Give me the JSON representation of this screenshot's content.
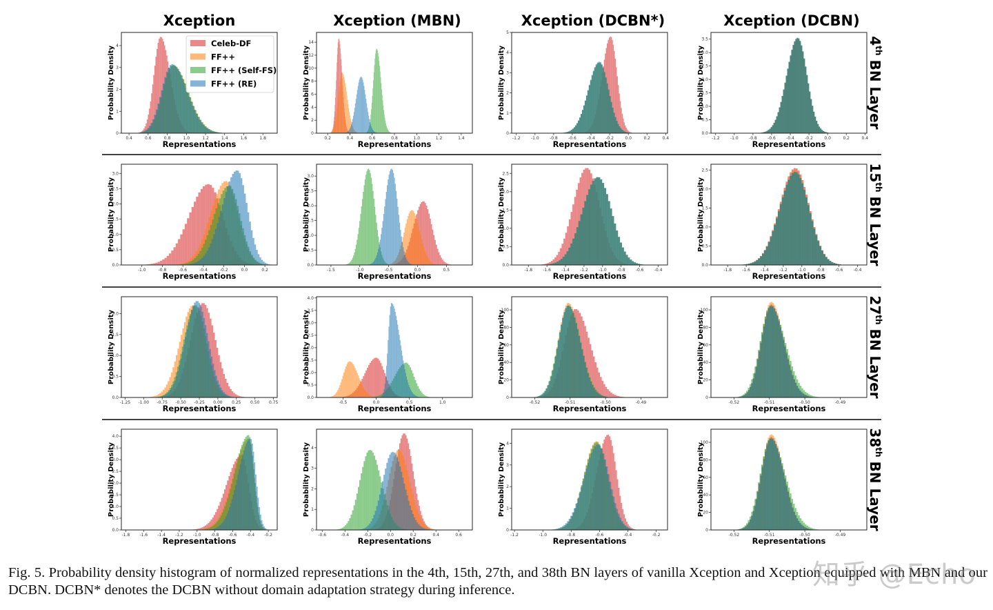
{
  "figure": {
    "column_titles": [
      "Xception",
      "Xception (MBN)",
      "Xception (DCBN*)",
      "Xception (DCBN)"
    ],
    "row_labels": [
      {
        "num": "4",
        "sup": "th",
        "rest": "BN Layer"
      },
      {
        "num": "15",
        "sup": "th",
        "rest": "BN Layer"
      },
      {
        "num": "27",
        "sup": "th",
        "rest": "BN Layer"
      },
      {
        "num": "38",
        "sup": "th",
        "rest": "BN Layer"
      }
    ],
    "xlabel": "Representations",
    "ylabel": "Probability Density",
    "legend": [
      "Celeb-DF",
      "FF++",
      "FF++ (Self-FS)",
      "FF++ (RE)"
    ],
    "colors": {
      "Celeb-DF": "#d62728",
      "FF++": "#ff7f0e",
      "FF++ (Self-FS)": "#2ca02c",
      "FF++ (RE)": "#1f77b4"
    },
    "caption": "Fig. 5.   Probability density histogram of normalized representations in the 4th, 15th, 27th, and 38th BN layers of vanilla Xception and Xception equipped with MBN and our DCBN. DCBN* denotes the DCBN without domain adaptation strategy during inference.",
    "watermark": "知乎 @Echo"
  },
  "chart_data": [
    {
      "type": "bar",
      "row": "4th BN Layer",
      "title": "Xception",
      "xlim": [
        0.32,
        1.95
      ],
      "ylim": [
        0,
        4.6
      ],
      "xticks": [
        "0.4",
        "0.6",
        "0.8",
        "1.0",
        "1.2",
        "1.4",
        "1.6",
        "1.8"
      ],
      "yticks": [
        "0",
        "1",
        "2",
        "3",
        "4"
      ],
      "legend": "top-right",
      "series": [
        {
          "name": "Celeb-DF",
          "peak_x": 0.73,
          "peak_density": 4.4,
          "spread_left": 0.07,
          "spread_right": 0.1
        },
        {
          "name": "FF++",
          "peak_x": 0.86,
          "peak_density": 3.1,
          "spread_left": 0.11,
          "spread_right": 0.16
        },
        {
          "name": "FF++ (Self-FS)",
          "peak_x": 0.86,
          "peak_density": 3.1,
          "spread_left": 0.11,
          "spread_right": 0.16
        },
        {
          "name": "FF++ (RE)",
          "peak_x": 0.85,
          "peak_density": 3.15,
          "spread_left": 0.11,
          "spread_right": 0.16
        }
      ]
    },
    {
      "type": "bar",
      "row": "4th BN Layer",
      "title": "Xception (MBN)",
      "xlim": [
        0.1,
        1.5
      ],
      "ylim": [
        0,
        15.5
      ],
      "xticks": [
        "0.2",
        "0.4",
        "0.6",
        "0.8",
        "1.0",
        "1.2",
        "1.4"
      ],
      "yticks": [
        "0",
        "2",
        "4",
        "6",
        "8",
        "10",
        "12",
        "14"
      ],
      "series": [
        {
          "name": "Celeb-DF",
          "peak_x": 0.3,
          "peak_density": 14.6,
          "spread_left": 0.022,
          "spread_right": 0.03
        },
        {
          "name": "FF++",
          "peak_x": 0.33,
          "peak_density": 9.3,
          "spread_left": 0.035,
          "spread_right": 0.045
        },
        {
          "name": "FF++ (Self-FS)",
          "peak_x": 0.64,
          "peak_density": 13,
          "spread_left": 0.03,
          "spread_right": 0.04
        },
        {
          "name": "FF++ (RE)",
          "peak_x": 0.5,
          "peak_density": 8.7,
          "spread_left": 0.045,
          "spread_right": 0.045
        }
      ]
    },
    {
      "type": "bar",
      "row": "4th BN Layer",
      "title": "Xception (DCBN*)",
      "xlim": [
        -1.25,
        0.42
      ],
      "ylim": [
        0,
        5
      ],
      "xticks": [
        "-1.2",
        "-1.0",
        "-0.8",
        "-0.6",
        "-0.4",
        "-0.2",
        "0.0",
        "0.2",
        "0.4"
      ],
      "yticks": [
        "0",
        "1",
        "2",
        "3",
        "4",
        "5"
      ],
      "series": [
        {
          "name": "Celeb-DF",
          "peak_x": -0.19,
          "peak_density": 4.8,
          "spread_left": 0.09,
          "spread_right": 0.07
        },
        {
          "name": "FF++",
          "peak_x": -0.31,
          "peak_density": 3.5,
          "spread_left": 0.12,
          "spread_right": 0.1
        },
        {
          "name": "FF++ (Self-FS)",
          "peak_x": -0.31,
          "peak_density": 3.5,
          "spread_left": 0.12,
          "spread_right": 0.1
        },
        {
          "name": "FF++ (RE)",
          "peak_x": -0.31,
          "peak_density": 3.55,
          "spread_left": 0.12,
          "spread_right": 0.1
        }
      ]
    },
    {
      "type": "bar",
      "row": "4th BN Layer",
      "title": "Xception (DCBN)",
      "xlim": [
        -1.25,
        0.42
      ],
      "ylim": [
        0,
        3.75
      ],
      "xticks": [
        "-1.2",
        "-1.0",
        "-0.8",
        "-0.6",
        "-0.4",
        "-0.2",
        "0.0",
        "0.2",
        "0.4"
      ],
      "yticks": [
        "0.0",
        "0.5",
        "1.0",
        "1.5",
        "2.0",
        "2.5",
        "3.0",
        "3.5"
      ],
      "series": [
        {
          "name": "Celeb-DF",
          "peak_x": -0.32,
          "peak_density": 3.5,
          "spread_left": 0.12,
          "spread_right": 0.1
        },
        {
          "name": "FF++",
          "peak_x": -0.32,
          "peak_density": 3.55,
          "spread_left": 0.12,
          "spread_right": 0.1
        },
        {
          "name": "FF++ (Self-FS)",
          "peak_x": -0.32,
          "peak_density": 3.55,
          "spread_left": 0.12,
          "spread_right": 0.1
        },
        {
          "name": "FF++ (RE)",
          "peak_x": -0.32,
          "peak_density": 3.55,
          "spread_left": 0.12,
          "spread_right": 0.1
        }
      ]
    },
    {
      "type": "bar",
      "row": "15th BN Layer",
      "title": "Xception",
      "xlim": [
        -1.2,
        0.32
      ],
      "ylim": [
        0,
        3.3
      ],
      "xticks": [
        "-1.0",
        "-0.8",
        "-0.6",
        "-0.4",
        "-0.2",
        "0.0",
        "0.2"
      ],
      "yticks": [
        "0.0",
        "0.5",
        "1.0",
        "1.5",
        "2.0",
        "2.5",
        "3.0"
      ],
      "series": [
        {
          "name": "Celeb-DF",
          "peak_x": -0.35,
          "peak_density": 2.65,
          "spread_left": 0.19,
          "spread_right": 0.14
        },
        {
          "name": "FF++",
          "peak_x": -0.18,
          "peak_density": 2.75,
          "spread_left": 0.15,
          "spread_right": 0.12
        },
        {
          "name": "FF++ (Self-FS)",
          "peak_x": -0.15,
          "peak_density": 2.6,
          "spread_left": 0.15,
          "spread_right": 0.11
        },
        {
          "name": "FF++ (RE)",
          "peak_x": -0.07,
          "peak_density": 3.1,
          "spread_left": 0.15,
          "spread_right": 0.1
        }
      ]
    },
    {
      "type": "bar",
      "row": "15th BN Layer",
      "title": "Xception (MBN)",
      "xlim": [
        -1.75,
        0.95
      ],
      "ylim": [
        0,
        3.4
      ],
      "xticks": [
        "-1.5",
        "-1.0",
        "-0.5",
        "0.0",
        "0.5"
      ],
      "yticks": [
        "0.0",
        "0.5",
        "1.0",
        "1.5",
        "2.0",
        "2.5",
        "3.0"
      ],
      "series": [
        {
          "name": "Celeb-DF",
          "peak_x": 0.1,
          "peak_density": 2.15,
          "spread_left": 0.17,
          "spread_right": 0.15
        },
        {
          "name": "FF++",
          "peak_x": -0.1,
          "peak_density": 1.85,
          "spread_left": 0.13,
          "spread_right": 0.14
        },
        {
          "name": "FF++ (Self-FS)",
          "peak_x": -0.85,
          "peak_density": 3.25,
          "spread_left": 0.12,
          "spread_right": 0.11
        },
        {
          "name": "FF++ (RE)",
          "peak_x": -0.45,
          "peak_density": 3.25,
          "spread_left": 0.12,
          "spread_right": 0.11
        }
      ]
    },
    {
      "type": "bar",
      "row": "15th BN Layer",
      "title": "Xception (DCBN*)",
      "xlim": [
        -1.98,
        -0.3
      ],
      "ylim": [
        0,
        2.75
      ],
      "xticks": [
        "-1.8",
        "-1.6",
        "-1.4",
        "-1.2",
        "-1.0",
        "-0.8",
        "-0.6",
        "-0.4"
      ],
      "yticks": [
        "0.0",
        "0.5",
        "1.0",
        "1.5",
        "2.0",
        "2.5"
      ],
      "series": [
        {
          "name": "Celeb-DF",
          "peak_x": -1.17,
          "peak_density": 2.65,
          "spread_left": 0.15,
          "spread_right": 0.14
        },
        {
          "name": "FF++",
          "peak_x": -1.05,
          "peak_density": 2.4,
          "spread_left": 0.17,
          "spread_right": 0.15
        },
        {
          "name": "FF++ (Self-FS)",
          "peak_x": -1.05,
          "peak_density": 2.4,
          "spread_left": 0.17,
          "spread_right": 0.15
        },
        {
          "name": "FF++ (RE)",
          "peak_x": -1.05,
          "peak_density": 2.4,
          "spread_left": 0.17,
          "spread_right": 0.15
        }
      ]
    },
    {
      "type": "bar",
      "row": "15th BN Layer",
      "title": "Xception (DCBN)",
      "xlim": [
        -1.98,
        -0.3
      ],
      "ylim": [
        0,
        2.65
      ],
      "xticks": [
        "-1.8",
        "-1.6",
        "-1.4",
        "-1.2",
        "-1.0",
        "-0.8",
        "-0.6",
        "-0.4"
      ],
      "yticks": [
        "0.0",
        "0.5",
        "1.0",
        "1.5",
        "2.0",
        "2.5"
      ],
      "series": [
        {
          "name": "Celeb-DF",
          "peak_x": -1.07,
          "peak_density": 2.55,
          "spread_left": 0.17,
          "spread_right": 0.15
        },
        {
          "name": "FF++",
          "peak_x": -1.07,
          "peak_density": 2.5,
          "spread_left": 0.17,
          "spread_right": 0.15
        },
        {
          "name": "FF++ (Self-FS)",
          "peak_x": -1.07,
          "peak_density": 2.45,
          "spread_left": 0.17,
          "spread_right": 0.15
        },
        {
          "name": "FF++ (RE)",
          "peak_x": -1.07,
          "peak_density": 2.45,
          "spread_left": 0.17,
          "spread_right": 0.15
        }
      ]
    },
    {
      "type": "bar",
      "row": "27th BN Layer",
      "title": "Xception",
      "xlim": [
        -1.3,
        0.8
      ],
      "ylim": [
        0,
        2.4
      ],
      "xticks": [
        "-1.25",
        "-1.00",
        "-0.75",
        "-0.50",
        "-0.25",
        "0.00",
        "0.25",
        "0.50",
        "0.75"
      ],
      "yticks": [
        "0.0",
        "0.5",
        "1.0",
        "1.5",
        "2.0"
      ],
      "series": [
        {
          "name": "Celeb-DF",
          "peak_x": -0.2,
          "peak_density": 2.25,
          "spread_left": 0.17,
          "spread_right": 0.17
        },
        {
          "name": "FF++",
          "peak_x": -0.33,
          "peak_density": 2.2,
          "spread_left": 0.18,
          "spread_right": 0.15
        },
        {
          "name": "FF++ (Self-FS)",
          "peak_x": -0.3,
          "peak_density": 2.2,
          "spread_left": 0.16,
          "spread_right": 0.15
        },
        {
          "name": "FF++ (RE)",
          "peak_x": -0.28,
          "peak_density": 2.3,
          "spread_left": 0.16,
          "spread_right": 0.15
        }
      ]
    },
    {
      "type": "bar",
      "row": "27th BN Layer",
      "title": "Xception (MBN)",
      "xlim": [
        -0.9,
        1.45
      ],
      "ylim": [
        0,
        4.05
      ],
      "xticks": [
        "-0.5",
        "0.0",
        "0.5",
        "1.0"
      ],
      "yticks": [
        "0.0",
        "0.5",
        "1.0",
        "1.5",
        "2.0",
        "2.5",
        "3.0",
        "3.5",
        "4.0"
      ],
      "series": [
        {
          "name": "Celeb-DF",
          "peak_x": 0.0,
          "peak_density": 1.6,
          "spread_left": 0.17,
          "spread_right": 0.13
        },
        {
          "name": "FF++",
          "peak_x": -0.4,
          "peak_density": 1.45,
          "spread_left": 0.1,
          "spread_right": 0.13
        },
        {
          "name": "FF++ (Self-FS)",
          "peak_x": 0.45,
          "peak_density": 1.4,
          "spread_left": 0.17,
          "spread_right": 0.12
        },
        {
          "name": "FF++ (RE)",
          "peak_x": 0.23,
          "peak_density": 3.8,
          "spread_left": 0.05,
          "spread_right": 0.13
        }
      ]
    },
    {
      "type": "bar",
      "row": "27th BN Layer",
      "title": "Xception (DCBN*)",
      "xlim": [
        -0.5265,
        -0.4825
      ],
      "ylim": [
        0,
        115
      ],
      "xticks": [
        "-0.52",
        "-0.51",
        "-0.50",
        "-0.49"
      ],
      "yticks": [
        "0",
        "20",
        "40",
        "60",
        "80",
        "100"
      ],
      "series": [
        {
          "name": "Celeb-DF",
          "peak_x": -0.5085,
          "peak_density": 101,
          "spread_left": 0.0032,
          "spread_right": 0.0042
        },
        {
          "name": "FF++",
          "peak_x": -0.5105,
          "peak_density": 108,
          "spread_left": 0.0028,
          "spread_right": 0.0034
        },
        {
          "name": "FF++ (Self-FS)",
          "peak_x": -0.5105,
          "peak_density": 105,
          "spread_left": 0.0029,
          "spread_right": 0.0035
        },
        {
          "name": "FF++ (RE)",
          "peak_x": -0.5105,
          "peak_density": 105,
          "spread_left": 0.0028,
          "spread_right": 0.0034
        }
      ]
    },
    {
      "type": "bar",
      "row": "27th BN Layer",
      "title": "Xception (DCBN)",
      "xlim": [
        -0.5265,
        -0.4825
      ],
      "ylim": [
        0,
        115
      ],
      "xticks": [
        "-0.52",
        "-0.51",
        "-0.50",
        "-0.49"
      ],
      "yticks": [
        "0",
        "20",
        "40",
        "60",
        "80",
        "100"
      ],
      "series": [
        {
          "name": "Celeb-DF",
          "peak_x": -0.5095,
          "peak_density": 106,
          "spread_left": 0.0028,
          "spread_right": 0.0036
        },
        {
          "name": "FF++",
          "peak_x": -0.5095,
          "peak_density": 109,
          "spread_left": 0.0028,
          "spread_right": 0.0036
        },
        {
          "name": "FF++ (Self-FS)",
          "peak_x": -0.5097,
          "peak_density": 104,
          "spread_left": 0.0029,
          "spread_right": 0.0042
        },
        {
          "name": "FF++ (RE)",
          "peak_x": -0.5095,
          "peak_density": 105,
          "spread_left": 0.0028,
          "spread_right": 0.0036
        }
      ]
    },
    {
      "type": "bar",
      "row": "38th BN Layer",
      "title": "Xception",
      "xlim": [
        -1.85,
        -0.1
      ],
      "ylim": [
        0,
        4.3
      ],
      "xticks": [
        "-1.8",
        "-1.6",
        "-1.4",
        "-1.2",
        "-1.0",
        "-0.8",
        "-0.6",
        "-0.4",
        "-0.2"
      ],
      "yticks": [
        "0.0",
        "0.5",
        "1.0",
        "1.5",
        "2.0",
        "2.5",
        "3.0",
        "3.5",
        "4.0"
      ],
      "series": [
        {
          "name": "Celeb-DF",
          "peak_x": -0.5,
          "peak_density": 3.2,
          "spread_left": 0.17,
          "spread_right": 0.08
        },
        {
          "name": "FF++",
          "peak_x": -0.42,
          "peak_density": 3.9,
          "spread_left": 0.17,
          "spread_right": 0.06
        },
        {
          "name": "FF++ (Self-FS)",
          "peak_x": -0.42,
          "peak_density": 4.05,
          "spread_left": 0.16,
          "spread_right": 0.06
        },
        {
          "name": "FF++ (RE)",
          "peak_x": -0.4,
          "peak_density": 3.9,
          "spread_left": 0.14,
          "spread_right": 0.06
        }
      ]
    },
    {
      "type": "bar",
      "row": "38th BN Layer",
      "title": "Xception (MBN)",
      "xlim": [
        -0.65,
        0.72
      ],
      "ylim": [
        0,
        4.9
      ],
      "xticks": [
        "-0.6",
        "-0.4",
        "-0.2",
        "0.0",
        "0.2",
        "0.4",
        "0.6"
      ],
      "yticks": [
        "0",
        "1",
        "2",
        "3",
        "4"
      ],
      "series": [
        {
          "name": "Celeb-DF",
          "peak_x": 0.12,
          "peak_density": 4.7,
          "spread_left": 0.08,
          "spread_right": 0.08
        },
        {
          "name": "FF++",
          "peak_x": 0.07,
          "peak_density": 3.9,
          "spread_left": 0.09,
          "spread_right": 0.1
        },
        {
          "name": "FF++ (Self-FS)",
          "peak_x": -0.18,
          "peak_density": 3.9,
          "spread_left": 0.09,
          "spread_right": 0.1
        },
        {
          "name": "FF++ (RE)",
          "peak_x": 0.02,
          "peak_density": 3.8,
          "spread_left": 0.09,
          "spread_right": 0.1
        }
      ]
    },
    {
      "type": "bar",
      "row": "38th BN Layer",
      "title": "Xception (DCBN*)",
      "xlim": [
        -1.22,
        -0.12
      ],
      "ylim": [
        0,
        4.65
      ],
      "xticks": [
        "-1.2",
        "-1.0",
        "-0.8",
        "-0.6",
        "-0.4",
        "-0.2"
      ],
      "yticks": [
        "0",
        "1",
        "2",
        "3",
        "4"
      ],
      "series": [
        {
          "name": "Celeb-DF",
          "peak_x": -0.54,
          "peak_density": 4.4,
          "spread_left": 0.08,
          "spread_right": 0.06
        },
        {
          "name": "FF++",
          "peak_x": -0.62,
          "peak_density": 4.1,
          "spread_left": 0.09,
          "spread_right": 0.08
        },
        {
          "name": "FF++ (Self-FS)",
          "peak_x": -0.62,
          "peak_density": 4.05,
          "spread_left": 0.09,
          "spread_right": 0.08
        },
        {
          "name": "FF++ (RE)",
          "peak_x": -0.61,
          "peak_density": 3.95,
          "spread_left": 0.1,
          "spread_right": 0.08
        }
      ]
    },
    {
      "type": "bar",
      "row": "38th BN Layer",
      "title": "Xception (DCBN)",
      "xlim": [
        -0.5265,
        -0.4825
      ],
      "ylim": [
        0,
        115
      ],
      "xticks": [
        "-0.52",
        "-0.51",
        "-0.50",
        "-0.49"
      ],
      "yticks": [
        "0",
        "20",
        "40",
        "60",
        "80",
        "100"
      ],
      "series": [
        {
          "name": "Celeb-DF",
          "peak_x": -0.5095,
          "peak_density": 106,
          "spread_left": 0.0028,
          "spread_right": 0.0036
        },
        {
          "name": "FF++",
          "peak_x": -0.5095,
          "peak_density": 109,
          "spread_left": 0.0028,
          "spread_right": 0.0036
        },
        {
          "name": "FF++ (Self-FS)",
          "peak_x": -0.5097,
          "peak_density": 104,
          "spread_left": 0.0029,
          "spread_right": 0.0042
        },
        {
          "name": "FF++ (RE)",
          "peak_x": -0.5095,
          "peak_density": 105,
          "spread_left": 0.0028,
          "spread_right": 0.0036
        }
      ]
    }
  ]
}
